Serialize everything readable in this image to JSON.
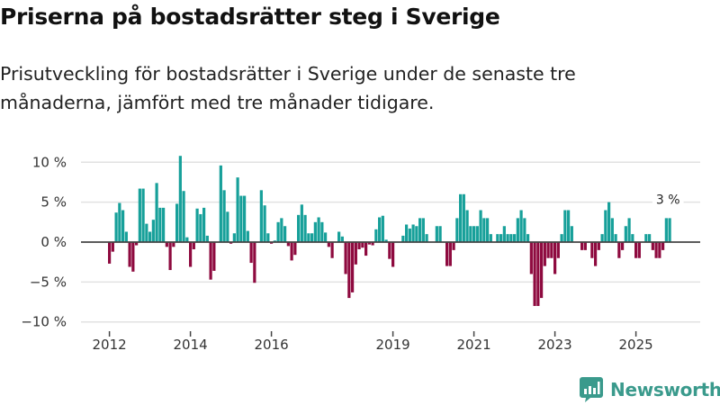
{
  "header": {
    "title": "Priserna på bostadsrätter steg i Sverige",
    "subtitle": "Prisutveckling för bostadsrätter i Sverige under de senaste tre månaderna, jämfört med tre månader tidigare."
  },
  "brand": {
    "name": "Newsworthy",
    "icon": "bar-chart-speech-bubble-icon",
    "color": "#3a9a8c"
  },
  "colors": {
    "positive": "#17a09a",
    "negative": "#8e0a3f",
    "zero_line": "#444444",
    "grid": "#e2e2e2"
  },
  "chart_data": {
    "type": "bar",
    "title": "Priserna på bostadsrätter steg i Sverige",
    "subtitle": "Prisutveckling för bostadsrätter i Sverige under de senaste tre månaderna, jämfört med tre månader tidigare.",
    "xlabel": "",
    "ylabel": "",
    "x_start": "2012-01",
    "x_end": "2025-11",
    "frequency": "monthly",
    "ylim": [
      -10,
      11
    ],
    "yticks": [
      10,
      5,
      0,
      -5,
      -10
    ],
    "ytick_labels": [
      "10 %",
      "5 %",
      "0 %",
      "−5 %",
      "−10 %"
    ],
    "xticks": [
      "2012-01",
      "2014-01",
      "2016-01",
      "2019-01",
      "2021-01",
      "2023-01",
      "2025-01"
    ],
    "xtick_labels": [
      "2012",
      "2014",
      "2016",
      "2019",
      "2021",
      "2023",
      "2025"
    ],
    "grid": true,
    "legend": "none",
    "annotation": {
      "label": "3 %",
      "target": "last"
    },
    "values": [
      -2.7,
      -1.2,
      3.7,
      4.9,
      4.0,
      1.3,
      -3.1,
      -3.7,
      -0.4,
      6.7,
      6.7,
      2.3,
      1.3,
      2.8,
      7.4,
      4.3,
      4.3,
      -0.6,
      -3.5,
      -0.6,
      4.8,
      10.8,
      6.4,
      0.6,
      -3.1,
      -0.9,
      4.2,
      3.5,
      4.3,
      0.8,
      -4.7,
      -3.6,
      0,
      9.6,
      6.5,
      3.8,
      -0.2,
      1.1,
      8.1,
      5.8,
      5.8,
      1.4,
      -2.6,
      -5.1,
      0,
      6.5,
      4.6,
      1.1,
      -0.2,
      0.2,
      2.5,
      3.0,
      2.0,
      -0.5,
      -2.3,
      -1.6,
      3.4,
      4.7,
      3.4,
      1.1,
      1.1,
      2.5,
      3.1,
      2.5,
      1.2,
      -0.6,
      -2.0,
      0,
      1.3,
      0.7,
      -4.0,
      -7.0,
      -6.3,
      -2.8,
      -0.9,
      -0.7,
      -1.7,
      -0.3,
      -0.4,
      1.6,
      3.1,
      3.3,
      0.3,
      -2.1,
      -3.1,
      0,
      0,
      0.8,
      2.2,
      1.7,
      2.2,
      2.0,
      3.0,
      3.0,
      1.0,
      0,
      0,
      2.0,
      2.0,
      0,
      -3.0,
      -3.0,
      -1.0,
      3.0,
      6.0,
      6.0,
      4.0,
      2.0,
      2.0,
      2.0,
      4.0,
      3.0,
      3.0,
      1.0,
      0,
      1.0,
      1.0,
      2.0,
      1.0,
      1.0,
      1.0,
      3.0,
      4.0,
      3.0,
      1.0,
      -4.0,
      -8.0,
      -8.0,
      -7.0,
      -3.0,
      -2.0,
      -2.0,
      -4.0,
      -2.0,
      1.0,
      4.0,
      4.0,
      2.0,
      0,
      0,
      -1.0,
      -1.0,
      0,
      -2.0,
      -3.0,
      -1.0,
      1.0,
      4.0,
      5.0,
      3.0,
      1.0,
      -2.0,
      -1.0,
      2.0,
      3.0,
      1.0,
      -2.0,
      -2.0,
      0,
      1.0,
      1.0,
      -1.0,
      -2.0,
      -2.0,
      -1.0,
      3.0,
      3.0
    ]
  }
}
